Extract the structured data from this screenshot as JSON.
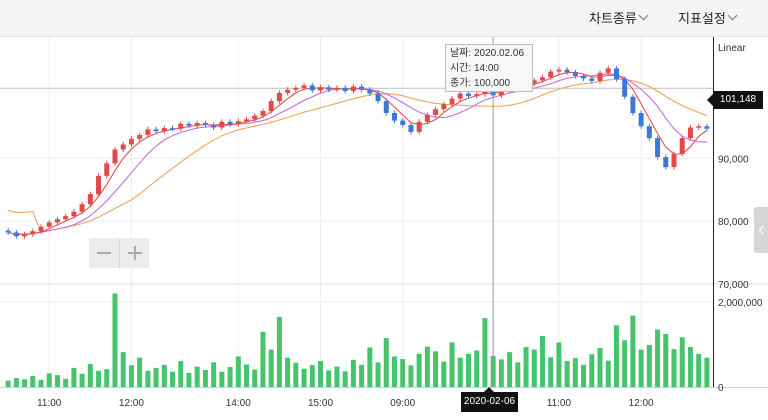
{
  "toolbar": {
    "chart_type": "차트종류",
    "indicator": "지표설정"
  },
  "scale_label": "Linear",
  "tooltip": {
    "date": "날짜: 2020.02.06",
    "time": "시간: 14:00",
    "close": "종가: 100,000"
  },
  "current_price": "101,148",
  "crosshair_date": "2020-02-06",
  "colors": {
    "up": "#e24a4a",
    "down": "#3a79d8",
    "ma_short": "#e8504f",
    "ma_mid": "#c66fe0",
    "ma_long": "#f2a35d",
    "volume": "#46c46c",
    "grid": "#eeeeee",
    "ma_alt": "#6cc36c"
  },
  "chart_data": {
    "type": "candlestick",
    "price_axis": {
      "ticks": [
        70000,
        80000,
        90000
      ],
      "tick_labels": [
        "70,000",
        "80,000",
        "90,000"
      ],
      "ylim": [
        70000,
        108500
      ]
    },
    "volume_axis": {
      "ticks": [
        0,
        2000000
      ],
      "tick_labels": [
        "0",
        "2,000,000"
      ],
      "ylim": [
        0,
        2000000
      ]
    },
    "x_labels": [
      "11:00",
      "12:00",
      "14:00",
      "15:00",
      "09:00",
      "2020-02-06",
      "11:00",
      "12:00"
    ],
    "x_label_index": [
      5,
      15,
      28,
      38,
      48,
      59,
      67,
      77
    ],
    "crosshair_index": 59,
    "closes": [
      78200,
      77600,
      77900,
      78400,
      79100,
      79800,
      80300,
      80800,
      81500,
      82700,
      84300,
      87200,
      89200,
      91400,
      92200,
      93100,
      93700,
      94600,
      94300,
      94800,
      94700,
      95500,
      95200,
      95600,
      95300,
      94900,
      95800,
      95400,
      95900,
      96200,
      96800,
      97500,
      99100,
      100400,
      100900,
      101200,
      101600,
      100800,
      101300,
      100900,
      101200,
      100700,
      101400,
      100900,
      100300,
      99100,
      97200,
      96000,
      95300,
      94200,
      95800,
      96900,
      97800,
      98600,
      99500,
      100300,
      99900,
      100200,
      101100,
      100000,
      100800,
      101300,
      101600,
      101900,
      102400,
      102900,
      103800,
      104100,
      103700,
      103100,
      102700,
      102300,
      103600,
      104300,
      102600,
      99800,
      97200,
      95100,
      93200,
      90200,
      88600,
      90700,
      93200,
      94900,
      95100,
      94700
    ],
    "volumes": [
      150000,
      210000,
      180000,
      260000,
      170000,
      320000,
      280000,
      190000,
      450000,
      310000,
      540000,
      380000,
      420000,
      2200000,
      820000,
      510000,
      690000,
      380000,
      450000,
      520000,
      360000,
      610000,
      330000,
      480000,
      400000,
      580000,
      360000,
      470000,
      720000,
      530000,
      410000,
      1300000,
      880000,
      1650000,
      690000,
      570000,
      430000,
      520000,
      610000,
      390000,
      480000,
      370000,
      640000,
      520000,
      930000,
      580000,
      1150000,
      720000,
      660000,
      510000,
      780000,
      950000,
      840000,
      600000,
      1050000,
      690000,
      780000,
      860000,
      1620000,
      730000,
      650000,
      820000,
      580000,
      940000,
      880000,
      1200000,
      700000,
      1050000,
      610000,
      680000,
      520000,
      770000,
      920000,
      620000,
      1450000,
      1100000,
      1680000,
      880000,
      990000,
      1350000,
      1250000,
      890000,
      1170000,
      940000,
      780000,
      690000
    ]
  }
}
